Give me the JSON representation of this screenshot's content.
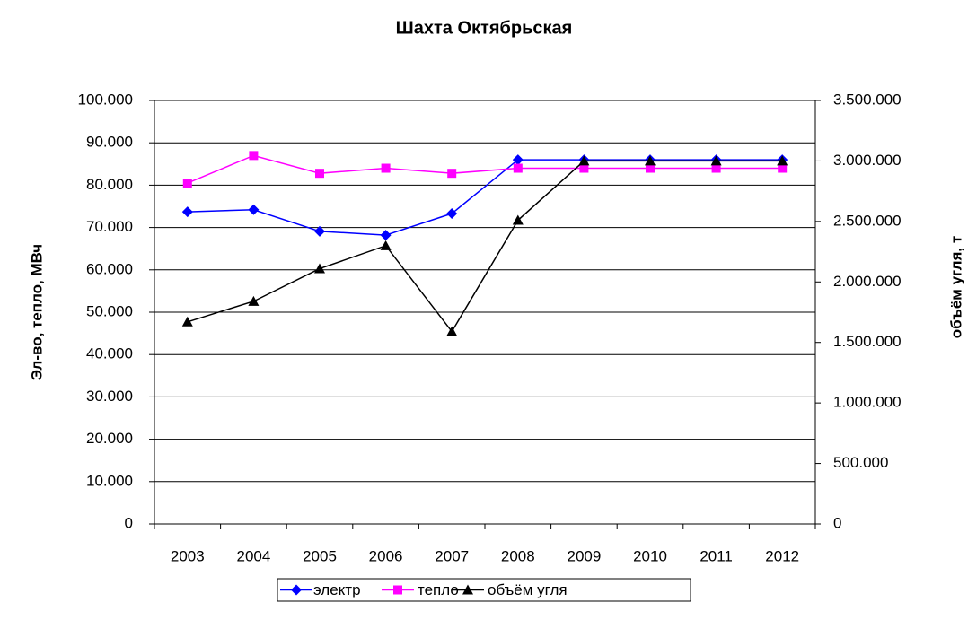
{
  "chart_data": {
    "type": "line",
    "title": "Шахта Октябрьская",
    "ylabel": "Эл-во, тепло, МВч",
    "y2label": "объём угля, т",
    "categories": [
      "2003",
      "2004",
      "2005",
      "2006",
      "2007",
      "2008",
      "2009",
      "2010",
      "2011",
      "2012"
    ],
    "series": [
      {
        "name": "электр",
        "color": "#0000ff",
        "marker": "diamond",
        "values": [
          73700,
          74200,
          69100,
          68200,
          73300,
          86000,
          86000,
          86000,
          86000,
          86000
        ]
      },
      {
        "name": "тепло",
        "color": "#ff00ff",
        "marker": "square",
        "values": [
          80500,
          87000,
          82800,
          84000,
          82800,
          84000,
          84000,
          84000,
          84000,
          84000
        ]
      },
      {
        "name": "объём угля",
        "color": "#000000",
        "marker": "triangle",
        "axis": "y2",
        "values": [
          1670000,
          1840000,
          2110000,
          2300000,
          1590000,
          2510000,
          3000000,
          3000000,
          3000000,
          3000000
        ]
      }
    ],
    "ylim": [
      0,
      100000
    ],
    "yticks": [
      0,
      {
        "value": 10000,
        "label": "10.000"
      },
      {
        "value": 20000,
        "label": "20.000"
      },
      {
        "value": 30000,
        "label": "30.000"
      },
      {
        "value": 40000,
        "label": "40.000"
      },
      {
        "value": 50000,
        "label": "50.000"
      },
      {
        "value": 60000,
        "label": "60.000"
      },
      {
        "value": 70000,
        "label": "70.000"
      },
      {
        "value": 80000,
        "label": "80.000"
      },
      {
        "value": 90000,
        "label": "90.000"
      },
      {
        "value": 100000,
        "label": "100.000"
      }
    ],
    "y2lim": [
      0,
      3500000
    ],
    "y2ticks": [
      0,
      {
        "value": 500000,
        "label": "500.000"
      },
      {
        "value": 1000000,
        "label": "1.000.000"
      },
      {
        "value": 1500000,
        "label": "1.500.000"
      },
      {
        "value": 2000000,
        "label": "2.000.000"
      },
      {
        "value": 2500000,
        "label": "2.500.000"
      },
      {
        "value": 3000000,
        "label": "3.000.000"
      },
      {
        "value": 3500000,
        "label": "3.500.000"
      }
    ],
    "grid": true,
    "legend": "bottom"
  }
}
